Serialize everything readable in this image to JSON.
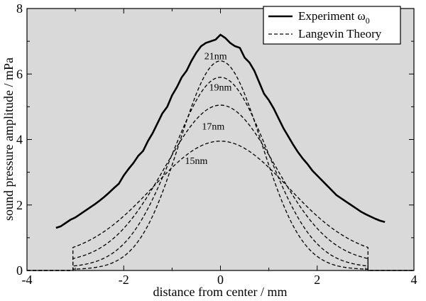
{
  "chart_data": {
    "type": "line",
    "xlabel": "distance from center / mm",
    "ylabel": "sound pressure amplitude / mPa",
    "xlim": [
      -4,
      4
    ],
    "ylim": [
      0,
      8
    ],
    "xticks": [
      "-4",
      "-2",
      "0",
      "2",
      "4"
    ],
    "yticks": [
      "0",
      "2",
      "4",
      "6",
      "8"
    ],
    "background_color": "#d9d9d9",
    "legend_position": "top-right",
    "legend": {
      "experiment": "Experiment ω",
      "experiment_subscript": "0",
      "theory": "Langevin Theory"
    },
    "experiment": {
      "x": [
        -3.4,
        -3.3,
        -3.2,
        -3.1,
        -3.0,
        -2.9,
        -2.8,
        -2.7,
        -2.6,
        -2.5,
        -2.4,
        -2.3,
        -2.2,
        -2.1,
        -2.0,
        -1.9,
        -1.8,
        -1.7,
        -1.6,
        -1.5,
        -1.4,
        -1.3,
        -1.2,
        -1.1,
        -1.0,
        -0.9,
        -0.8,
        -0.7,
        -0.6,
        -0.5,
        -0.4,
        -0.3,
        -0.2,
        -0.1,
        0.0,
        0.1,
        0.2,
        0.3,
        0.4,
        0.5,
        0.6,
        0.7,
        0.8,
        0.9,
        1.0,
        1.1,
        1.2,
        1.3,
        1.4,
        1.5,
        1.6,
        1.7,
        1.8,
        1.9,
        2.0,
        2.1,
        2.2,
        2.3,
        2.4,
        2.5,
        2.6,
        2.7,
        2.8,
        2.9,
        3.0,
        3.1,
        3.2,
        3.3,
        3.4
      ],
      "y": [
        1.3,
        1.35,
        1.45,
        1.55,
        1.62,
        1.72,
        1.82,
        1.92,
        2.02,
        2.13,
        2.25,
        2.38,
        2.52,
        2.65,
        2.9,
        3.1,
        3.28,
        3.5,
        3.65,
        3.95,
        4.2,
        4.5,
        4.8,
        5.0,
        5.35,
        5.6,
        5.9,
        6.1,
        6.4,
        6.65,
        6.85,
        6.95,
        7.0,
        7.05,
        7.2,
        7.1,
        6.95,
        6.85,
        6.8,
        6.5,
        6.35,
        6.1,
        5.75,
        5.4,
        5.2,
        4.95,
        4.65,
        4.35,
        4.1,
        3.85,
        3.62,
        3.42,
        3.25,
        3.05,
        2.9,
        2.75,
        2.6,
        2.45,
        2.3,
        2.2,
        2.1,
        2.0,
        1.9,
        1.8,
        1.72,
        1.65,
        1.58,
        1.52,
        1.48
      ]
    },
    "theory": [
      {
        "label": "21nm",
        "peak": 6.4,
        "width": 0.85,
        "edge": 0.03,
        "label_x": -0.1,
        "label_y": 6.45
      },
      {
        "label": "19nm",
        "peak": 5.9,
        "width": 0.98,
        "edge": 0.09,
        "label_x": 0.0,
        "label_y": 5.5
      },
      {
        "label": "17nm",
        "peak": 5.05,
        "width": 1.15,
        "edge": 0.22,
        "label_x": -0.15,
        "label_y": 4.3
      },
      {
        "label": "15nm",
        "peak": 3.95,
        "width": 1.4,
        "edge": 0.37,
        "label_x": -0.5,
        "label_y": 3.25
      }
    ],
    "theory_cutoff": 3.05
  }
}
